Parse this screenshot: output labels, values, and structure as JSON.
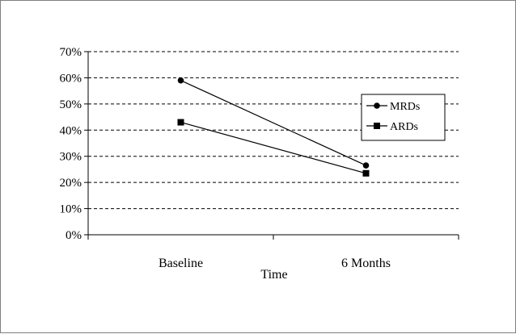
{
  "chart_data": {
    "type": "line",
    "title": "",
    "xlabel": "Time",
    "ylabel": "",
    "categories": [
      "Baseline",
      "6 Months"
    ],
    "ylim": [
      0,
      70
    ],
    "yticks": [
      "0%",
      "10%",
      "20%",
      "30%",
      "40%",
      "50%",
      "60%",
      "70%"
    ],
    "grid": "horizontal-dashed",
    "legend_position": "right",
    "series": [
      {
        "name": "MRDs",
        "marker": "circle",
        "color": "#000000",
        "values": [
          59,
          26.5
        ]
      },
      {
        "name": "ARDs",
        "marker": "square",
        "color": "#000000",
        "values": [
          43,
          23.5
        ]
      }
    ]
  }
}
